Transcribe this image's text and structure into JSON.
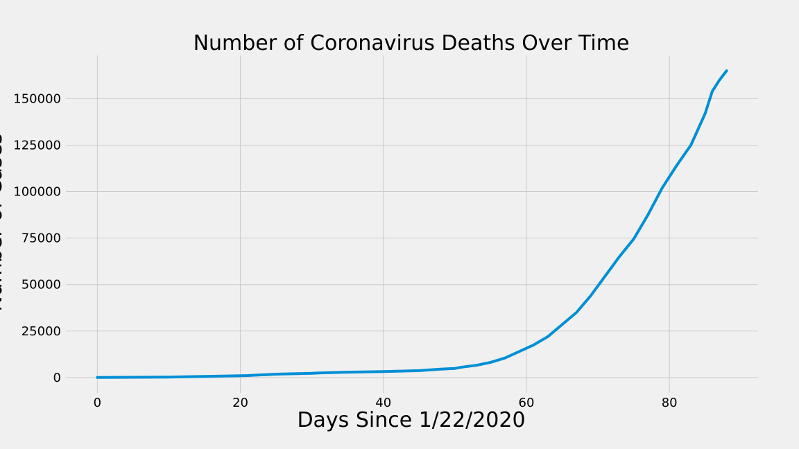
{
  "chart_data": {
    "type": "line",
    "title": "Number of Coronavirus Deaths Over Time",
    "xlabel": "Days Since 1/22/2020",
    "ylabel": "Number of Cases",
    "xlim": [
      -4.4,
      92.4
    ],
    "ylim": [
      -8250,
      173250
    ],
    "xticks": [
      0,
      20,
      40,
      60,
      80
    ],
    "yticks": [
      0,
      25000,
      50000,
      75000,
      100000,
      125000,
      150000
    ],
    "grid": true,
    "line_color": "#008fd5",
    "series": [
      {
        "x": [
          0,
          5,
          10,
          15,
          20,
          21,
          25,
          30,
          31,
          35,
          40,
          45,
          48,
          50,
          51,
          53,
          55,
          57,
          59,
          61,
          63,
          65,
          67,
          69,
          71,
          73,
          75,
          77,
          79,
          81,
          83,
          85,
          86,
          87,
          88
        ],
        "values": [
          17,
          130,
          260,
          600,
          1000,
          1050,
          1800,
          2300,
          2500,
          2900,
          3200,
          3700,
          4500,
          4900,
          5600,
          6600,
          8200,
          10500,
          14000,
          17500,
          22000,
          28500,
          35000,
          44000,
          54500,
          65000,
          74500,
          87500,
          102000,
          114000,
          125000,
          142000,
          154000,
          160000,
          165000
        ]
      }
    ]
  }
}
